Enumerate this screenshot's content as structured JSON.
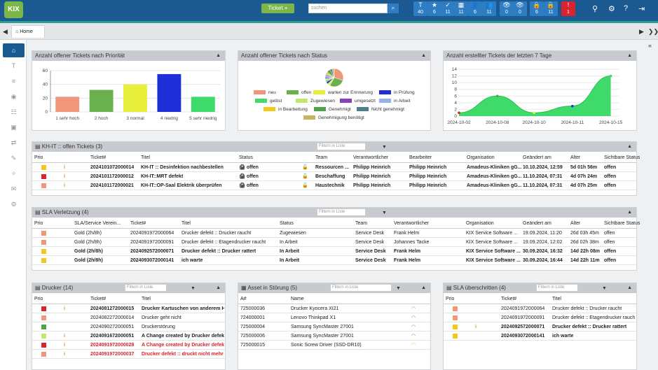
{
  "header": {
    "logo": "KIX",
    "ticket_button": "Ticket +",
    "search_placeholder": "suchen",
    "stats": [
      {
        "icon": "T",
        "count": "40",
        "name": "ticket-count"
      },
      {
        "icon": "★",
        "count": "6",
        "name": "favorites"
      },
      {
        "icon": "✓",
        "count": "11",
        "name": "tasks"
      },
      {
        "icon": "▦",
        "count": "11",
        "name": "news"
      },
      {
        "icon": "👤",
        "count": "6",
        "name": "my-tickets"
      },
      {
        "icon": "👥",
        "count": "11",
        "name": "team-tickets"
      },
      {
        "icon": "👁",
        "count": "0",
        "name": "watched"
      },
      {
        "icon": "👁",
        "count": "0",
        "name": "watched-new"
      },
      {
        "icon": "🔒",
        "count": "6",
        "name": "locked"
      },
      {
        "icon": "🔒",
        "count": "11",
        "name": "locked-all"
      },
      {
        "icon": "!",
        "count": "1",
        "name": "escalated",
        "color": "#d9232e"
      }
    ]
  },
  "tabs": {
    "home": "Home"
  },
  "panels": {
    "prio_chart": {
      "title": "Anzahl offener Tickets nach Priorität"
    },
    "status_chart": {
      "title": "Anzahl offener Tickets nach Status"
    },
    "created_chart": {
      "title": "Anzahl erstellter Tickets der letzten 7 Tage"
    },
    "offene": {
      "title": "KH-IT :: offen Tickets (3)",
      "filter_placeholder": "Filtern in Liste"
    },
    "sla_verl": {
      "title": "SLA Verletzung (4)",
      "filter_placeholder": "Filtern in Liste"
    },
    "drucker": {
      "title": "Drucker (14)",
      "filter_placeholder": "Filtern in Liste"
    },
    "asset": {
      "title": "Asset in Störung (5)",
      "filter_placeholder": "Filtern in Liste"
    },
    "sla_ueb": {
      "title": "SLA überschritten (4)",
      "filter_placeholder": "Filtern in Liste"
    }
  },
  "chart_data": [
    {
      "type": "bar",
      "title": "Anzahl offener Tickets nach Priorität",
      "categories": [
        "1 sehr hoch",
        "2 hoch",
        "3 normal",
        "4 niedrig",
        "5 sehr niedrig"
      ],
      "values": [
        22,
        32,
        40,
        55,
        22
      ],
      "colors": [
        "#f0967a",
        "#6ab04c",
        "#e8ef3a",
        "#1f2fd8",
        "#3edb6a"
      ],
      "ylim": [
        0,
        60
      ],
      "yticks": [
        0,
        20,
        40,
        60
      ]
    },
    {
      "type": "pie",
      "title": "Anzahl offener Tickets nach Status",
      "labels": [
        "neu",
        "offen",
        "warten zur Erinnerung",
        "in Prüfung",
        "gelöst",
        "Zugewiesen",
        "umgesetzt",
        "in Arbeit",
        "in Bearbeitung",
        "Genehmigt",
        "Nicht genehmigt",
        "Genehmigung benötigt"
      ],
      "colors": [
        "#f0967a",
        "#6ab04c",
        "#e8ef3a",
        "#1f2fd8",
        "#3edb6a",
        "#bde86a",
        "#8a3fc2",
        "#8fb3ea",
        "#f2c81e",
        "#4fa34a",
        "#4f7f8f",
        "#c9b35a"
      ],
      "values": [
        30,
        28,
        5,
        4,
        3,
        3,
        3,
        6,
        4,
        6,
        4,
        4
      ]
    },
    {
      "type": "area",
      "title": "Anzahl erstellter Tickets der letzten 7 Tage",
      "x": [
        "2024-10-02",
        "2024-10-08",
        "2024-10-10",
        "2024-10-11",
        "2024-10-15"
      ],
      "y": [
        1,
        6,
        1,
        3,
        12
      ],
      "ylim": [
        0,
        14
      ],
      "yticks": [
        0,
        2,
        4,
        6,
        8,
        10,
        12,
        14
      ],
      "color": "#3edb6a"
    }
  ],
  "offene_table": {
    "headers": [
      "Prio",
      "",
      "",
      "Ticket#",
      "Titel",
      "Status",
      "",
      "Team",
      "Verantwortlicher",
      "Bearbeiter",
      "Organisation",
      "Geändert am",
      "Alter",
      "Sichtbare Status"
    ],
    "rows": [
      {
        "prio": "#f2c81e",
        "tn": "2024101072000014",
        "title": "KH-IT :: Desinfektion nachbestellen",
        "status": "offen",
        "team": "Ressourcen ...",
        "resp": "Philipp Heinrich",
        "bearb": "Philipp Heinrich",
        "org": "Amadeus-Kliniken gG...",
        "changed": "10.10.2024, 12:59",
        "age": "5d 01h 56m",
        "vis": "offen"
      },
      {
        "prio": "#d9232e",
        "tn": "2024101172000012",
        "title": "KH-IT::MRT defekt",
        "status": "offen",
        "team": "Beschaffung",
        "resp": "Philipp Heinrich",
        "bearb": "Philipp Heinrich",
        "org": "Amadeus-Kliniken gG...",
        "changed": "11.10.2024, 07:31",
        "age": "4d 07h 24m",
        "vis": "offen"
      },
      {
        "prio": "#f0967a",
        "tn": "2024101172000021",
        "title": "KH-IT::OP-Saal Elektrik überprüfen",
        "status": "offen",
        "team": "Haustechnik",
        "resp": "Philipp Heinrich",
        "bearb": "Philipp Heinrich",
        "org": "Amadeus-Kliniken gG...",
        "changed": "11.10.2024, 07:31",
        "age": "4d 07h 25m",
        "vis": "offen"
      }
    ]
  },
  "sla_table": {
    "headers": [
      "Prio",
      "",
      "SLA/Service Verein...",
      "Ticket#",
      "Titel",
      "Status",
      "Team",
      "Verantwortlicher",
      "Organisation",
      "Geändert am",
      "Alter",
      "Sichtbare Status"
    ],
    "rows": [
      {
        "prio": "#f0967a",
        "sla": "Gold (2h/8h)",
        "tn": "2024091972000064",
        "title": "Drucker defekt :: Drucker raucht",
        "status": "Zugewiesen",
        "team": "Service Desk",
        "resp": "Frank Helm",
        "org": "KIX Service Software ...",
        "changed": "19.09.2024, 11:20",
        "age": "26d 03h 45m",
        "vis": "offen",
        "bold": false
      },
      {
        "prio": "#f0967a",
        "sla": "Gold (2h/8h)",
        "tn": "2024091972000091",
        "title": "Drucker defekt :: Etagendrucker raucht",
        "status": "In Arbeit",
        "team": "Service Desk",
        "resp": "Johannes Tacke",
        "org": "KIX Service Software ...",
        "changed": "19.09.2024, 12:02",
        "age": "26d 02h 38m",
        "vis": "offen",
        "bold": false
      },
      {
        "prio": "#f2c81e",
        "sla": "Gold (2h/8h)",
        "tn": "2024092572000071",
        "title": "Drucker defekt :: Drucker rattert",
        "status": "In Arbeit",
        "team": "Service Desk",
        "resp": "Frank Helm",
        "org": "KIX Service Software ...",
        "changed": "30.09.2024, 16:32",
        "age": "14d 22h 08m",
        "vis": "offen",
        "bold": true
      },
      {
        "prio": "#f2c81e",
        "sla": "Gold (2h/8h)",
        "tn": "2024093072000141",
        "title": "ich warte",
        "status": "In Arbeit",
        "team": "Service Desk",
        "resp": "Frank Helm",
        "org": "KIX Service Software ...",
        "changed": "30.09.2024, 16:44",
        "age": "14d 22h 11m",
        "vis": "offen",
        "bold": true
      }
    ]
  },
  "drucker_table": {
    "headers": [
      "Prio",
      "",
      "Ticket#",
      "Titel"
    ],
    "rows": [
      {
        "prio": "#d9232e",
        "tn": "2024081272000015",
        "title": "Drucker Kartuschen von anderem Herst...",
        "style": "b",
        "info": true
      },
      {
        "prio": "#f0967a",
        "tn": "2024082272000014",
        "title": "Drucker geht nicht",
        "style": "",
        "info": false
      },
      {
        "prio": "#4fa34a",
        "tn": "2024090272000051",
        "title": "Druckerstörung",
        "style": "",
        "info": false
      },
      {
        "prio": "#bde86a",
        "tn": "2024091672000051",
        "title": "A Change created by Drucker defekt!",
        "style": "b",
        "info": true
      },
      {
        "prio": "#d9232e",
        "tn": "2024091972000028",
        "title": "A Change created by Drucker defekt!",
        "style": "r",
        "info": true
      },
      {
        "prio": "#f0967a",
        "tn": "2024091972000037",
        "title": "Drucker defekt :: druckt nicht mehr",
        "style": "r",
        "info": true
      }
    ]
  },
  "asset_table": {
    "headers": [
      "A#",
      "Name",
      ""
    ],
    "rows": [
      {
        "id": "725000036",
        "name": "Drucker Kyocera XI21",
        "gauge": "#4fa34a"
      },
      {
        "id": "724000001",
        "name": "Lenovo Thinkpad X1",
        "gauge": "#4fa34a"
      },
      {
        "id": "725000004",
        "name": "Samsung SyncMaster 27001",
        "gauge": "#4fa34a"
      },
      {
        "id": "725000006",
        "name": "Samsung SyncMaster 27001",
        "gauge": "#4fa34a"
      },
      {
        "id": "725000015",
        "name": "Sonic Screw Driver (SSD-DR10)",
        "gauge": "#e8c81e"
      }
    ]
  },
  "sla_ueb_table": {
    "headers": [
      "Prio",
      "",
      "Ticket#",
      "Titel"
    ],
    "rows": [
      {
        "prio": "#f0967a",
        "tn": "2024091972000064",
        "title": "Drucker defekt :: Drucker raucht",
        "bold": false,
        "info": false
      },
      {
        "prio": "#f0967a",
        "tn": "2024091972000091",
        "title": "Drucker defekt :: Etagendrucker raucht",
        "bold": false,
        "info": false
      },
      {
        "prio": "#f2c81e",
        "tn": "2024092572000071",
        "title": "Drucker defekt :: Drucker rattert",
        "bold": true,
        "info": true
      },
      {
        "prio": "#f2c81e",
        "tn": "2024093072000141",
        "title": "ich warte",
        "bold": true,
        "info": false
      }
    ]
  }
}
